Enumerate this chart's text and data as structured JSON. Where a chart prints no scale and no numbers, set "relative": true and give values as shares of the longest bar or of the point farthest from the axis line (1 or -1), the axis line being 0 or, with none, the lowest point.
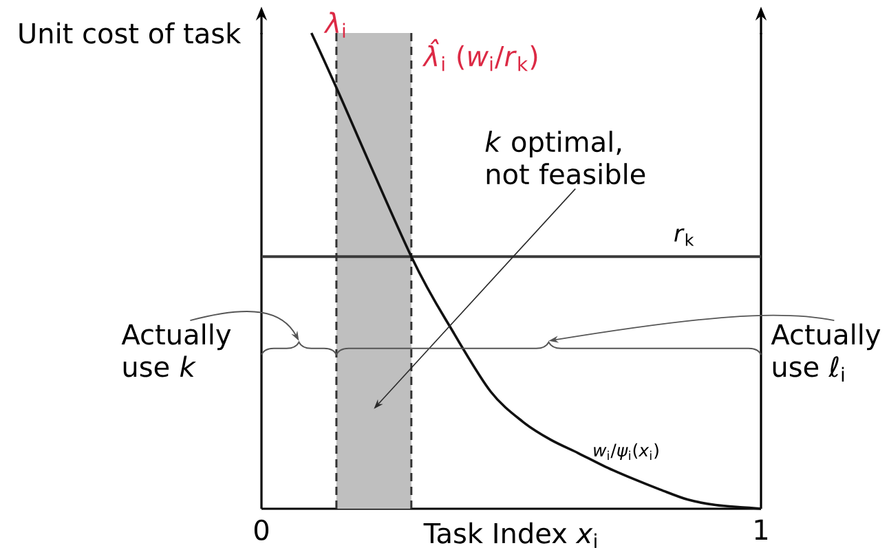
{
  "chart_data": {
    "type": "line",
    "relative": true,
    "xlabel": "Task Index *x*$_{i}$",
    "ylabel": "Unit cost of task",
    "xlim": [
      0,
      1
    ],
    "xticks": [
      0,
      1
    ],
    "series": [
      {
        "name": "*λ*$_{i}$",
        "color": "#111111",
        "x": [
          0.1,
          0.15,
          0.3,
          0.384,
          0.459,
          0.523,
          0.579,
          0.634,
          0.689,
          0.744,
          0.799,
          0.854,
          0.909,
          0.964,
          1.0
        ],
        "values": [
          1.0,
          0.885,
          0.53,
          0.371,
          0.246,
          0.183,
          0.145,
          0.117,
          0.088,
          0.063,
          0.04,
          0.019,
          0.008,
          0.003,
          0.0
        ]
      }
    ],
    "bands": [
      {
        "axis": "x",
        "from": 0.15,
        "to": 0.3,
        "color": "#bfbfbf"
      }
    ],
    "ref_lines": [
      {
        "axis": "y",
        "value": 0.53,
        "label": "*r*$_{k}$",
        "color": "#3a3a3a",
        "line_style": "solid"
      },
      {
        "axis": "x",
        "value": 0.15,
        "color": "#333333",
        "line_style": "dashed"
      },
      {
        "axis": "x",
        "value": 0.3,
        "label": "*λ̂*$_{i}$ (*w*$_{i}$/*r*$_{k}$)",
        "color": "#333333",
        "line_style": "dashed"
      }
    ],
    "annotations": [
      "*k* optimal, not feasible",
      "Actually use *k*",
      "Actually use ℓ$_{i}$",
      "*w*$_{i}$/*ψ*$_{i}$(*x*$_{i}$)"
    ]
  }
}
